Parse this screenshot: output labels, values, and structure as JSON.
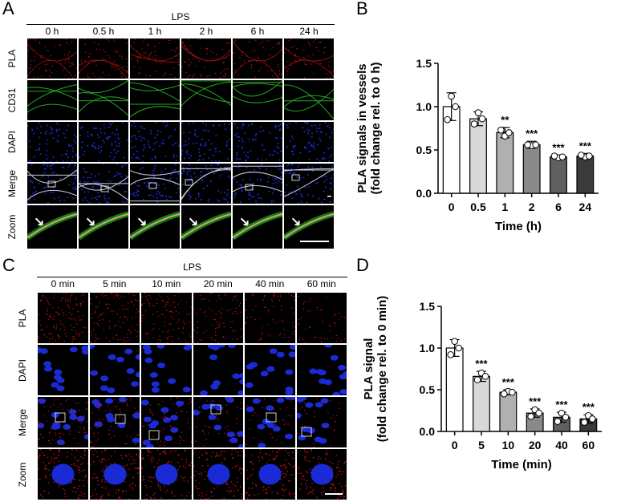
{
  "panels": {
    "a": "A",
    "b": "B",
    "c": "C",
    "d": "D"
  },
  "panel_a": {
    "group": "LPS",
    "columns": [
      "0 h",
      "0.5 h",
      "1 h",
      "2 h",
      "6 h",
      "24 h"
    ],
    "rows": [
      "PLA",
      "CD31",
      "DAPI",
      "Merge",
      "Zoom"
    ]
  },
  "panel_c": {
    "group": "LPS",
    "columns": [
      "0 min",
      "5 min",
      "10 min",
      "20 min",
      "40 min",
      "60 min"
    ],
    "rows": [
      "PLA",
      "DAPI",
      "Merge",
      "Zoom"
    ]
  },
  "colors": {
    "pla": "#cc1111",
    "cd31": "#22aa22",
    "dapi": "#1a2bd6"
  },
  "chart_data": [
    {
      "type": "bar",
      "ylabel": "PLA signals in vessels\n(fold change rel. to 0 h)",
      "xlabel": "Time (h)",
      "categories": [
        "0",
        "0.5",
        "1",
        "2",
        "6",
        "24"
      ],
      "values": [
        1.0,
        0.86,
        0.7,
        0.56,
        0.42,
        0.43
      ],
      "errors": [
        0.16,
        0.08,
        0.06,
        0.04,
        0.02,
        0.03
      ],
      "points": [
        [
          1.12,
          0.85,
          1.0
        ],
        [
          0.93,
          0.8,
          0.86
        ],
        [
          0.66,
          0.73,
          0.7
        ],
        [
          0.55,
          0.56,
          0.56
        ],
        [
          0.41,
          0.43,
          0.42
        ],
        [
          0.42,
          0.44,
          0.43
        ]
      ],
      "significance": [
        "",
        "",
        "**",
        "***",
        "***",
        "***"
      ],
      "ylim": [
        0,
        1.5
      ],
      "yticks": [
        "0.0",
        "0.5",
        "1.0",
        "1.5"
      ],
      "bar_colors": [
        "#ffffff",
        "#d9d9d9",
        "#b0b0b0",
        "#8a8a8a",
        "#606060",
        "#3a3a3a"
      ]
    },
    {
      "type": "bar",
      "ylabel": "PLA signal\n(fold change rel. to 0 min)",
      "xlabel": "Time (min)",
      "categories": [
        "0",
        "5",
        "10",
        "20",
        "40",
        "60"
      ],
      "values": [
        1.0,
        0.66,
        0.47,
        0.22,
        0.17,
        0.15
      ],
      "errors": [
        0.1,
        0.06,
        0.03,
        0.05,
        0.06,
        0.05
      ],
      "points": [
        [
          1.08,
          0.92,
          1.0
        ],
        [
          0.7,
          0.62,
          0.66
        ],
        [
          0.48,
          0.45,
          0.47
        ],
        [
          0.26,
          0.18,
          0.22
        ],
        [
          0.22,
          0.12,
          0.17
        ],
        [
          0.19,
          0.11,
          0.15
        ]
      ],
      "significance": [
        "",
        "***",
        "***",
        "***",
        "***",
        "***"
      ],
      "ylim": [
        0,
        1.5
      ],
      "yticks": [
        "0.0",
        "0.5",
        "1.0",
        "1.5"
      ],
      "bar_colors": [
        "#ffffff",
        "#d9d9d9",
        "#b0b0b0",
        "#8a8a8a",
        "#606060",
        "#3a3a3a"
      ]
    }
  ]
}
